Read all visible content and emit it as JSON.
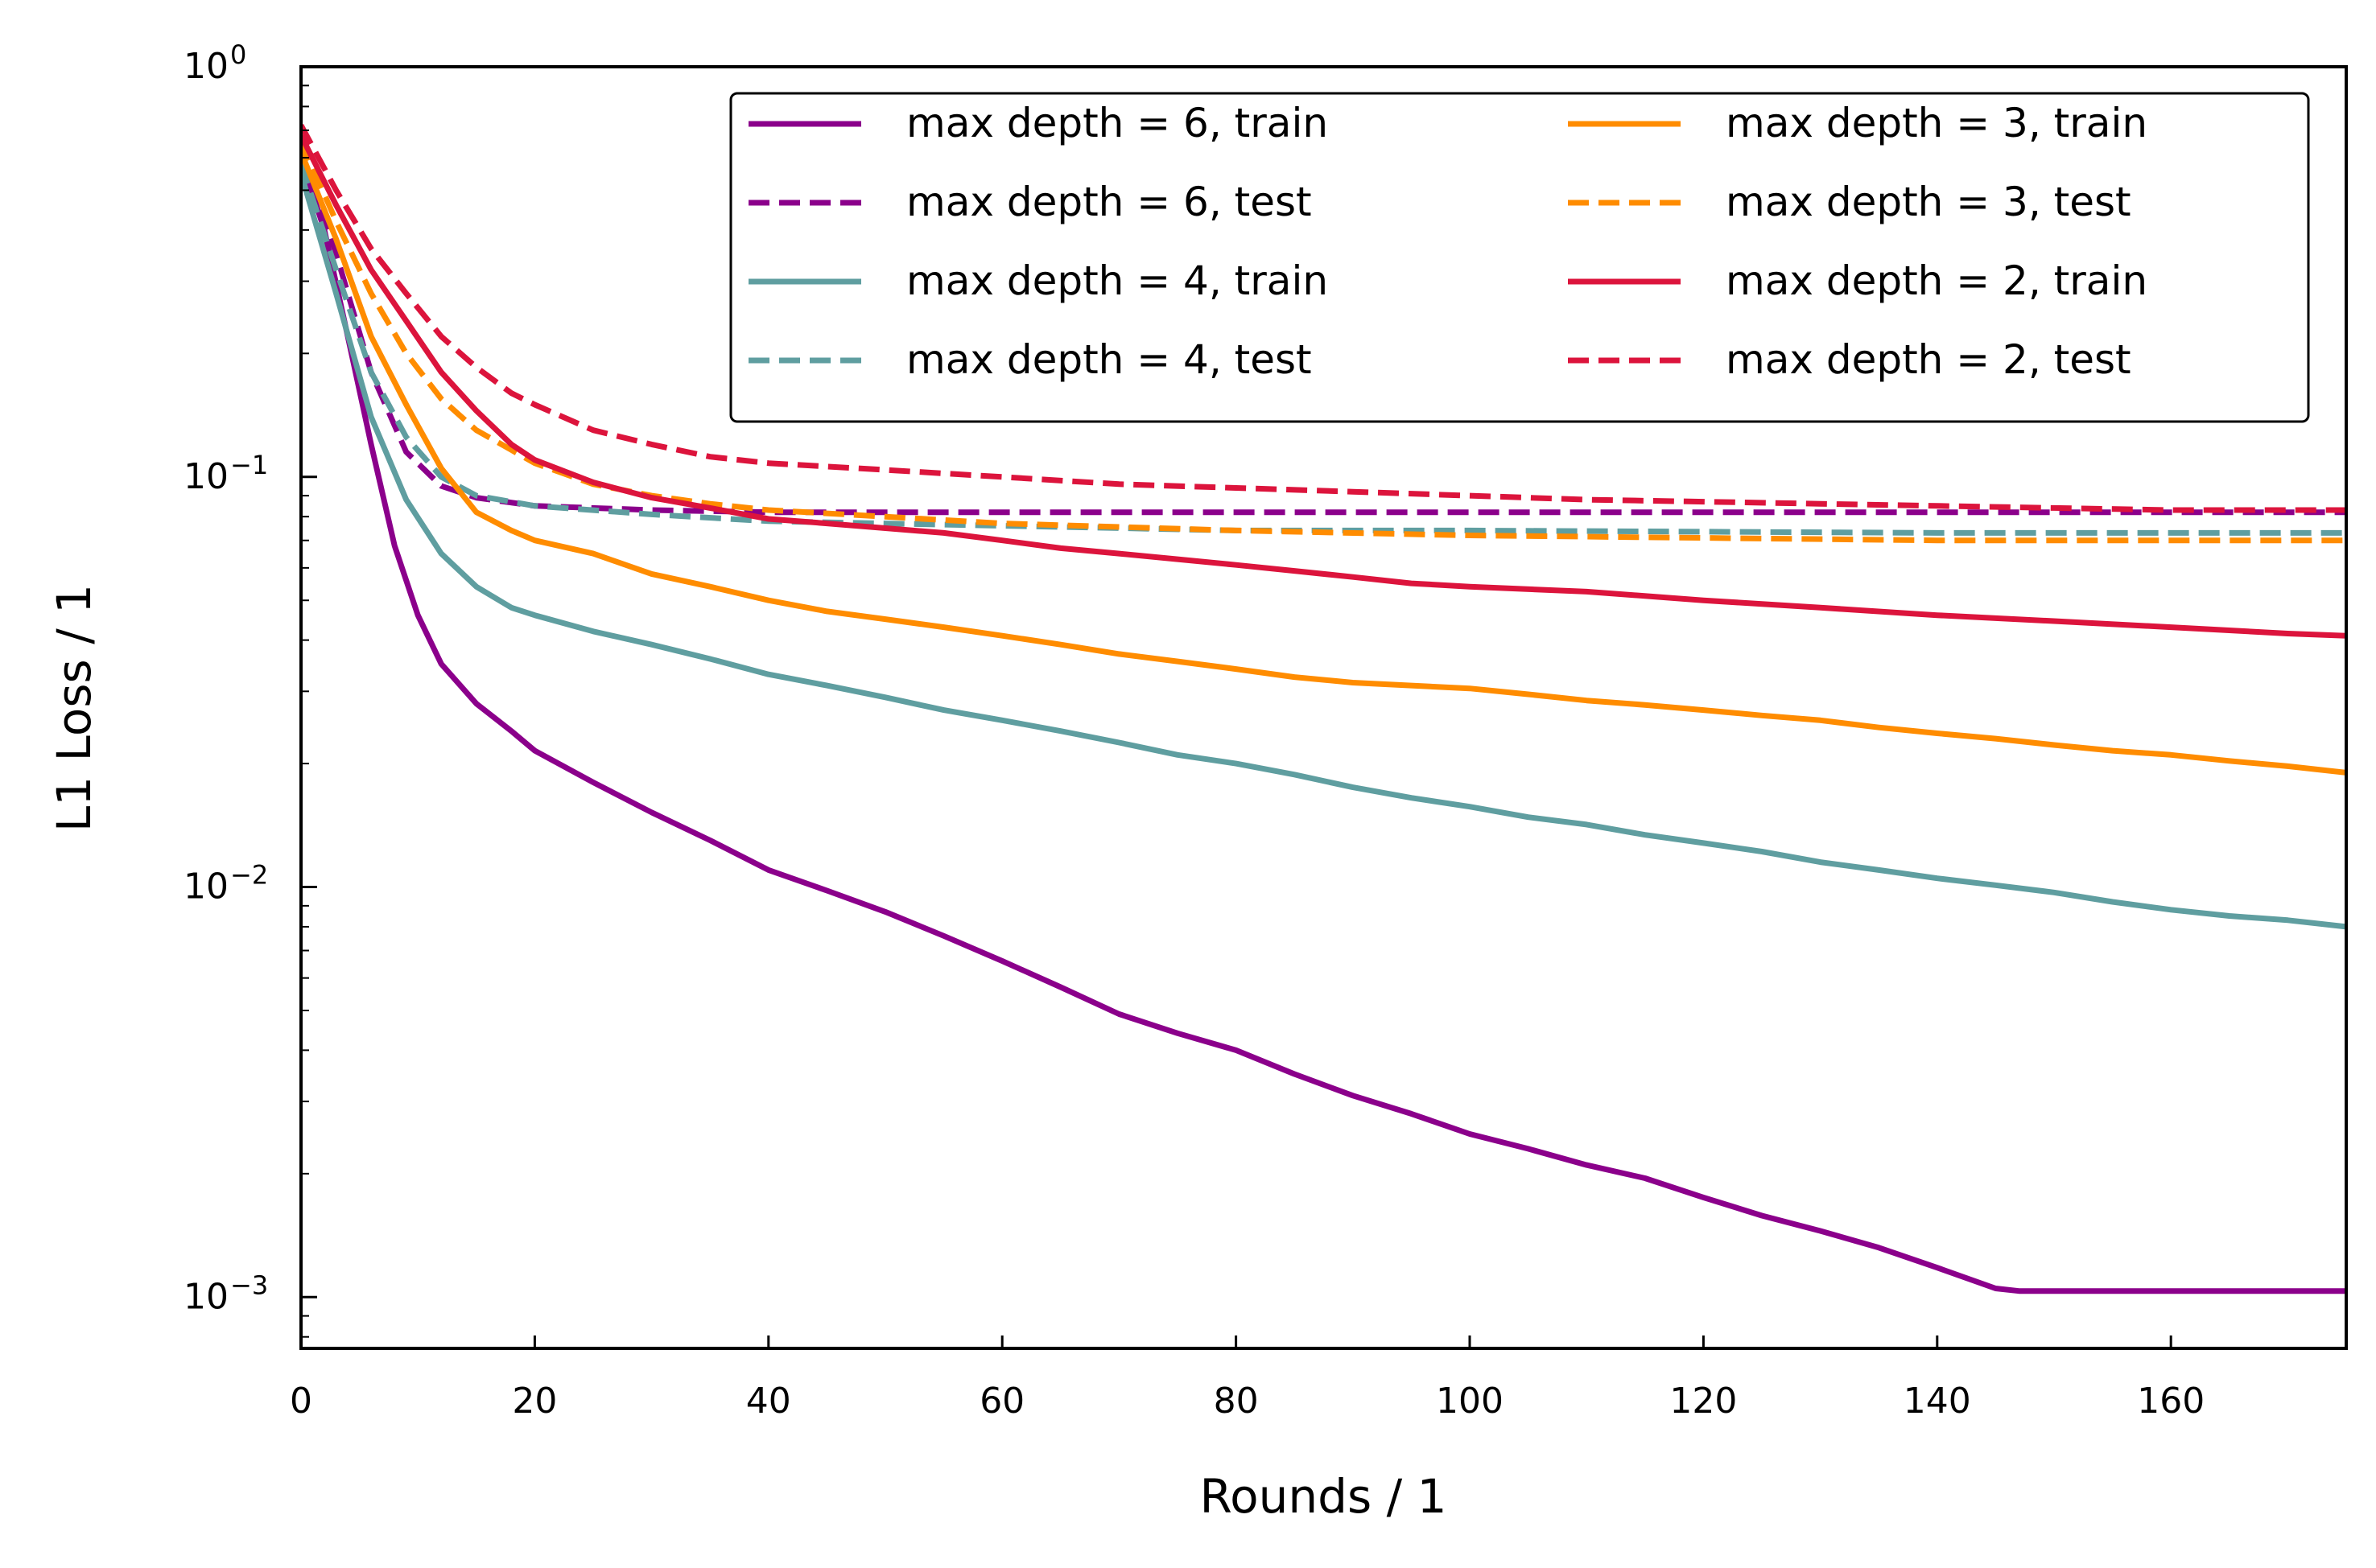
{
  "chart_data": {
    "type": "line",
    "title": "",
    "xlabel": "Rounds / 1",
    "ylabel": "L1 Loss / 1",
    "xlim": [
      0,
      175
    ],
    "ylim": [
      0.00075,
      1.0
    ],
    "yscale": "log",
    "grid": false,
    "legend": {
      "placement": "top-right",
      "columns": 2
    },
    "x_ticks": [
      0,
      20,
      40,
      60,
      80,
      100,
      120,
      140,
      160
    ],
    "y_ticks": [
      {
        "value": 1,
        "base": "10",
        "exp": "0"
      },
      {
        "value": 0.1,
        "base": "10",
        "exp": "−1"
      },
      {
        "value": 0.01,
        "base": "10",
        "exp": "−2"
      },
      {
        "value": 0.001,
        "base": "10",
        "exp": "−3"
      }
    ],
    "series": [
      {
        "name": "max depth = 6, train",
        "color": "#8B008B",
        "dash": "solid",
        "points": [
          [
            0,
            0.6
          ],
          [
            2,
            0.4
          ],
          [
            4,
            0.22
          ],
          [
            6,
            0.12
          ],
          [
            8,
            0.068
          ],
          [
            10,
            0.046
          ],
          [
            12,
            0.035
          ],
          [
            15,
            0.028
          ],
          [
            18,
            0.024
          ],
          [
            20,
            0.0215
          ],
          [
            25,
            0.018
          ],
          [
            30,
            0.0152
          ],
          [
            35,
            0.013
          ],
          [
            40,
            0.011
          ],
          [
            45,
            0.0098
          ],
          [
            50,
            0.0087
          ],
          [
            55,
            0.0076
          ],
          [
            60,
            0.0066
          ],
          [
            65,
            0.0057
          ],
          [
            70,
            0.0049
          ],
          [
            75,
            0.0044
          ],
          [
            80,
            0.004
          ],
          [
            85,
            0.0035
          ],
          [
            90,
            0.0031
          ],
          [
            95,
            0.0028
          ],
          [
            100,
            0.0025
          ],
          [
            105,
            0.0023
          ],
          [
            110,
            0.0021
          ],
          [
            115,
            0.00195
          ],
          [
            120,
            0.00175
          ],
          [
            125,
            0.00158
          ],
          [
            130,
            0.00145
          ],
          [
            135,
            0.00132
          ],
          [
            140,
            0.00118
          ],
          [
            145,
            0.00105
          ],
          [
            147,
            0.001035
          ],
          [
            175,
            0.001035
          ]
        ]
      },
      {
        "name": "max depth = 6, test",
        "color": "#8B008B",
        "dash": "dashed",
        "points": [
          [
            0,
            0.62
          ],
          [
            3,
            0.35
          ],
          [
            6,
            0.18
          ],
          [
            9,
            0.115
          ],
          [
            12,
            0.095
          ],
          [
            15,
            0.089
          ],
          [
            20,
            0.085
          ],
          [
            30,
            0.083
          ],
          [
            40,
            0.082
          ],
          [
            60,
            0.082
          ],
          [
            100,
            0.082
          ],
          [
            140,
            0.082
          ],
          [
            175,
            0.082
          ]
        ]
      },
      {
        "name": "max depth = 4, train",
        "color": "#5F9EA0",
        "dash": "solid",
        "points": [
          [
            0,
            0.55
          ],
          [
            3,
            0.28
          ],
          [
            6,
            0.14
          ],
          [
            9,
            0.088
          ],
          [
            12,
            0.065
          ],
          [
            15,
            0.054
          ],
          [
            18,
            0.048
          ],
          [
            20,
            0.046
          ],
          [
            25,
            0.042
          ],
          [
            30,
            0.039
          ],
          [
            35,
            0.036
          ],
          [
            40,
            0.033
          ],
          [
            45,
            0.031
          ],
          [
            50,
            0.029
          ],
          [
            55,
            0.027
          ],
          [
            60,
            0.0255
          ],
          [
            65,
            0.024
          ],
          [
            70,
            0.0225
          ],
          [
            75,
            0.021
          ],
          [
            80,
            0.02
          ],
          [
            85,
            0.0188
          ],
          [
            90,
            0.0175
          ],
          [
            95,
            0.0165
          ],
          [
            100,
            0.0157
          ],
          [
            105,
            0.0148
          ],
          [
            110,
            0.0142
          ],
          [
            115,
            0.0134
          ],
          [
            120,
            0.0128
          ],
          [
            125,
            0.0122
          ],
          [
            130,
            0.0115
          ],
          [
            135,
            0.011
          ],
          [
            140,
            0.0105
          ],
          [
            145,
            0.0101
          ],
          [
            150,
            0.0097
          ],
          [
            155,
            0.0092
          ],
          [
            160,
            0.0088
          ],
          [
            165,
            0.0085
          ],
          [
            170,
            0.0083
          ],
          [
            175,
            0.008
          ]
        ]
      },
      {
        "name": "max depth = 4, test",
        "color": "#5F9EA0",
        "dash": "dashed",
        "points": [
          [
            0,
            0.58
          ],
          [
            3,
            0.32
          ],
          [
            6,
            0.18
          ],
          [
            9,
            0.125
          ],
          [
            12,
            0.1
          ],
          [
            15,
            0.09
          ],
          [
            20,
            0.085
          ],
          [
            30,
            0.081
          ],
          [
            40,
            0.078
          ],
          [
            60,
            0.076
          ],
          [
            80,
            0.074
          ],
          [
            100,
            0.074
          ],
          [
            140,
            0.073
          ],
          [
            175,
            0.073
          ]
        ]
      },
      {
        "name": "max depth = 3, train",
        "color": "#FF8C00",
        "dash": "solid",
        "points": [
          [
            0,
            0.62
          ],
          [
            3,
            0.38
          ],
          [
            6,
            0.22
          ],
          [
            9,
            0.15
          ],
          [
            12,
            0.105
          ],
          [
            15,
            0.082
          ],
          [
            18,
            0.074
          ],
          [
            20,
            0.07
          ],
          [
            25,
            0.065
          ],
          [
            30,
            0.058
          ],
          [
            35,
            0.054
          ],
          [
            40,
            0.05
          ],
          [
            45,
            0.047
          ],
          [
            50,
            0.045
          ],
          [
            55,
            0.043
          ],
          [
            60,
            0.041
          ],
          [
            65,
            0.039
          ],
          [
            70,
            0.037
          ],
          [
            75,
            0.0355
          ],
          [
            80,
            0.034
          ],
          [
            85,
            0.0325
          ],
          [
            90,
            0.0315
          ],
          [
            95,
            0.031
          ],
          [
            100,
            0.0305
          ],
          [
            105,
            0.0295
          ],
          [
            110,
            0.0285
          ],
          [
            115,
            0.0278
          ],
          [
            120,
            0.027
          ],
          [
            125,
            0.0262
          ],
          [
            130,
            0.0255
          ],
          [
            135,
            0.0245
          ],
          [
            140,
            0.0237
          ],
          [
            145,
            0.023
          ],
          [
            150,
            0.0222
          ],
          [
            155,
            0.0215
          ],
          [
            160,
            0.021
          ],
          [
            165,
            0.0203
          ],
          [
            170,
            0.0197
          ],
          [
            175,
            0.019
          ]
        ]
      },
      {
        "name": "max depth = 3, test",
        "color": "#FF8C00",
        "dash": "dashed",
        "points": [
          [
            0,
            0.66
          ],
          [
            3,
            0.42
          ],
          [
            6,
            0.28
          ],
          [
            9,
            0.2
          ],
          [
            12,
            0.155
          ],
          [
            15,
            0.13
          ],
          [
            20,
            0.108
          ],
          [
            25,
            0.096
          ],
          [
            30,
            0.09
          ],
          [
            35,
            0.086
          ],
          [
            40,
            0.083
          ],
          [
            50,
            0.08
          ],
          [
            60,
            0.077
          ],
          [
            80,
            0.074
          ],
          [
            100,
            0.072
          ],
          [
            120,
            0.071
          ],
          [
            140,
            0.07
          ],
          [
            160,
            0.07
          ],
          [
            175,
            0.07
          ]
        ]
      },
      {
        "name": "max depth = 2, train",
        "color": "#DC143C",
        "dash": "solid",
        "points": [
          [
            0,
            0.68
          ],
          [
            3,
            0.46
          ],
          [
            6,
            0.32
          ],
          [
            9,
            0.24
          ],
          [
            12,
            0.18
          ],
          [
            15,
            0.145
          ],
          [
            18,
            0.12
          ],
          [
            20,
            0.11
          ],
          [
            25,
            0.097
          ],
          [
            30,
            0.089
          ],
          [
            35,
            0.084
          ],
          [
            40,
            0.079
          ],
          [
            45,
            0.077
          ],
          [
            50,
            0.075
          ],
          [
            55,
            0.073
          ],
          [
            60,
            0.07
          ],
          [
            65,
            0.067
          ],
          [
            70,
            0.065
          ],
          [
            75,
            0.063
          ],
          [
            80,
            0.061
          ],
          [
            85,
            0.059
          ],
          [
            90,
            0.057
          ],
          [
            95,
            0.055
          ],
          [
            100,
            0.054
          ],
          [
            110,
            0.0525
          ],
          [
            120,
            0.05
          ],
          [
            130,
            0.048
          ],
          [
            140,
            0.046
          ],
          [
            150,
            0.0445
          ],
          [
            160,
            0.043
          ],
          [
            170,
            0.0415
          ],
          [
            175,
            0.041
          ]
        ]
      },
      {
        "name": "max depth = 2, test",
        "color": "#DC143C",
        "dash": "dashed",
        "points": [
          [
            0,
            0.72
          ],
          [
            3,
            0.5
          ],
          [
            6,
            0.36
          ],
          [
            9,
            0.28
          ],
          [
            12,
            0.22
          ],
          [
            15,
            0.185
          ],
          [
            18,
            0.16
          ],
          [
            20,
            0.15
          ],
          [
            25,
            0.13
          ],
          [
            30,
            0.12
          ],
          [
            35,
            0.112
          ],
          [
            40,
            0.108
          ],
          [
            50,
            0.104
          ],
          [
            60,
            0.1
          ],
          [
            70,
            0.096
          ],
          [
            80,
            0.094
          ],
          [
            90,
            0.092
          ],
          [
            100,
            0.09
          ],
          [
            110,
            0.088
          ],
          [
            120,
            0.087
          ],
          [
            130,
            0.086
          ],
          [
            140,
            0.085
          ],
          [
            150,
            0.084
          ],
          [
            160,
            0.083
          ],
          [
            175,
            0.083
          ]
        ]
      }
    ]
  }
}
